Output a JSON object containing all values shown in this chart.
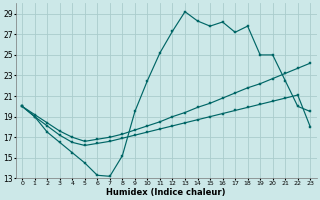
{
  "background_color": "#cce8e8",
  "grid_color": "#aacccc",
  "line_color": "#006666",
  "xlabel": "Humidex (Indice chaleur)",
  "ylim": [
    13,
    30
  ],
  "xlim": [
    -0.5,
    23.5
  ],
  "yticks": [
    13,
    15,
    17,
    19,
    21,
    23,
    25,
    27,
    29
  ],
  "xticks": [
    0,
    1,
    2,
    3,
    4,
    5,
    6,
    7,
    8,
    9,
    10,
    11,
    12,
    13,
    14,
    15,
    16,
    17,
    18,
    19,
    20,
    21,
    22,
    23
  ],
  "line1_x": [
    0,
    1,
    2,
    3,
    4,
    5,
    6,
    7,
    8,
    9,
    10,
    11,
    12,
    13,
    14,
    15,
    16,
    17,
    18,
    19,
    20,
    21,
    22,
    23
  ],
  "line1_y": [
    20,
    19,
    17.5,
    16.5,
    15.5,
    14.5,
    13.3,
    13.2,
    15.2,
    19.5,
    22.5,
    25.2,
    27.3,
    29.2,
    28.3,
    27.8,
    28.2,
    27.2,
    27.8,
    25.0,
    25.0,
    22.5,
    20.0,
    19.5
  ],
  "line2_x": [
    0,
    1,
    2,
    3,
    4,
    5,
    6,
    7,
    8,
    9,
    10,
    11,
    12,
    13,
    14,
    15,
    16,
    17,
    18,
    19,
    20,
    21,
    22,
    23
  ],
  "line2_y": [
    20.0,
    19.2,
    18.4,
    17.6,
    17.0,
    16.6,
    16.8,
    17.0,
    17.3,
    17.7,
    18.1,
    18.5,
    19.0,
    19.4,
    19.9,
    20.3,
    20.8,
    21.3,
    21.8,
    22.2,
    22.7,
    23.2,
    23.7,
    24.2
  ],
  "line3_x": [
    0,
    1,
    2,
    3,
    4,
    5,
    6,
    7,
    8,
    9,
    10,
    11,
    12,
    13,
    14,
    15,
    16,
    17,
    18,
    19,
    20,
    21,
    22,
    23
  ],
  "line3_y": [
    20.0,
    19.0,
    18.1,
    17.2,
    16.5,
    16.2,
    16.4,
    16.6,
    16.9,
    17.2,
    17.5,
    17.8,
    18.1,
    18.4,
    18.7,
    19.0,
    19.3,
    19.6,
    19.9,
    20.2,
    20.5,
    20.8,
    21.1,
    18.0
  ]
}
